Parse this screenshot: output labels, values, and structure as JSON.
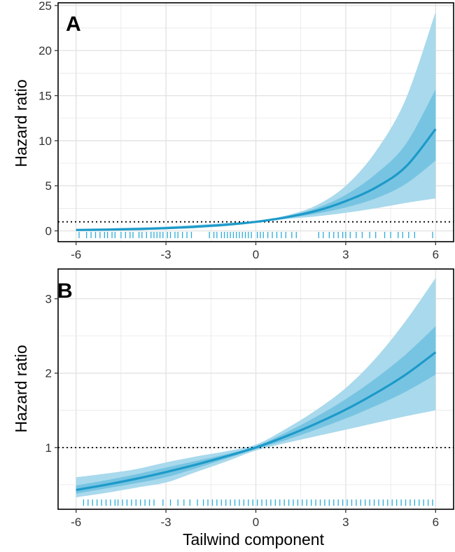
{
  "chart_data": [
    {
      "type": "line",
      "panel_label": "A",
      "xlabel": "",
      "ylabel": "Hazard ratio",
      "xlim": [
        -6.6,
        6.6
      ],
      "ylim": [
        -1.2,
        25.3
      ],
      "xticks": [
        -6,
        -3,
        0,
        3,
        6
      ],
      "xtick_labels": [
        "-6",
        "-3",
        "0",
        "3",
        "6"
      ],
      "yticks": [
        0,
        5,
        10,
        15,
        20,
        25
      ],
      "ytick_labels": [
        "0",
        "5",
        "10",
        "15",
        "20",
        "25"
      ],
      "grid": true,
      "reference_line": 1,
      "colors": {
        "line": "#1d9ac9",
        "band_outer": "#a9d9ec",
        "band_inner": "#6ec0e0",
        "rug": "#2bacd9",
        "grid": "#e3e3e3"
      },
      "x": [
        -6,
        -5,
        -4,
        -3,
        -2,
        -1,
        0,
        1,
        2,
        3,
        4,
        5,
        6
      ],
      "hr": [
        0.1,
        0.14,
        0.2,
        0.3,
        0.46,
        0.68,
        1.0,
        1.5,
        2.2,
        3.3,
        4.8,
        7.1,
        11.3
      ],
      "band_inner": {
        "lower": [
          0.07,
          0.1,
          0.15,
          0.24,
          0.39,
          0.6,
          0.95,
          1.4,
          1.9,
          2.6,
          3.6,
          5.2,
          7.8
        ],
        "upper": [
          0.14,
          0.19,
          0.26,
          0.37,
          0.54,
          0.76,
          1.05,
          1.6,
          2.5,
          4.0,
          6.3,
          9.6,
          15.7
        ]
      },
      "band_outer": {
        "lower": [
          0.04,
          0.07,
          0.11,
          0.18,
          0.31,
          0.52,
          0.9,
          1.3,
          1.6,
          2.0,
          2.5,
          3.1,
          3.6
        ],
        "upper": [
          0.22,
          0.28,
          0.36,
          0.48,
          0.66,
          0.88,
          1.1,
          1.7,
          2.8,
          5.0,
          8.8,
          14.6,
          24.3
        ]
      },
      "rug": [
        -5.9,
        -5.65,
        -5.5,
        -5.35,
        -5.2,
        -5.05,
        -4.95,
        -4.8,
        -4.7,
        -4.5,
        -4.35,
        -4.2,
        -4.1,
        -3.9,
        -3.8,
        -3.65,
        -3.5,
        -3.4,
        -3.3,
        -3.2,
        -3.1,
        -2.95,
        -2.85,
        -2.7,
        -2.6,
        -2.45,
        -2.3,
        -2.15,
        -1.55,
        -1.4,
        -1.3,
        -1.15,
        -1.05,
        -0.95,
        -0.85,
        -0.75,
        -0.65,
        -0.55,
        -0.45,
        -0.35,
        -0.25,
        -0.15,
        0.05,
        0.15,
        0.25,
        0.4,
        0.55,
        0.7,
        0.85,
        1.0,
        1.2,
        1.35,
        2.1,
        2.25,
        2.45,
        2.6,
        2.75,
        2.9,
        3.0,
        3.15,
        3.35,
        3.55,
        3.8,
        4.0,
        4.3,
        4.5,
        4.75,
        4.9,
        5.1,
        5.3,
        5.9
      ]
    },
    {
      "type": "line",
      "panel_label": "B",
      "xlabel": "Tailwind component",
      "ylabel": "Hazard ratio",
      "xlim": [
        -6.6,
        6.6
      ],
      "ylim": [
        0.17,
        3.4
      ],
      "xticks": [
        -6,
        -3,
        0,
        3,
        6
      ],
      "xtick_labels": [
        "-6",
        "-3",
        "0",
        "3",
        "6"
      ],
      "yticks": [
        1,
        2,
        3
      ],
      "ytick_labels": [
        "1",
        "2",
        "3"
      ],
      "grid": true,
      "reference_line": 1,
      "colors": {
        "line": "#1d9ac9",
        "band_outer": "#a9d9ec",
        "band_inner": "#6ec0e0",
        "rug": "#2bacd9",
        "grid": "#e3e3e3"
      },
      "x": [
        -6,
        -5,
        -4,
        -3,
        -2,
        -1,
        0,
        1,
        2,
        3,
        4,
        5,
        6
      ],
      "hr": [
        0.43,
        0.5,
        0.58,
        0.67,
        0.77,
        0.88,
        1.0,
        1.15,
        1.32,
        1.51,
        1.73,
        1.98,
        2.28
      ],
      "band_inner": {
        "lower": [
          0.38,
          0.45,
          0.52,
          0.6,
          0.72,
          0.85,
          0.98,
          1.1,
          1.24,
          1.39,
          1.56,
          1.75,
          1.98
        ],
        "upper": [
          0.49,
          0.56,
          0.64,
          0.73,
          0.82,
          0.91,
          1.02,
          1.2,
          1.41,
          1.65,
          1.93,
          2.25,
          2.63
        ]
      },
      "band_outer": {
        "lower": [
          0.33,
          0.39,
          0.46,
          0.53,
          0.67,
          0.81,
          0.96,
          1.06,
          1.15,
          1.24,
          1.33,
          1.42,
          1.5
        ],
        "upper": [
          0.6,
          0.65,
          0.71,
          0.8,
          0.88,
          0.95,
          1.04,
          1.25,
          1.5,
          1.8,
          2.2,
          2.7,
          3.28
        ]
      },
      "rug": [
        -5.75,
        -5.6,
        -5.45,
        -5.3,
        -5.15,
        -5.0,
        -4.85,
        -4.7,
        -4.6,
        -4.45,
        -4.3,
        -4.15,
        -4.0,
        -3.85,
        -3.7,
        -3.55,
        -3.4,
        -3.1,
        -2.85,
        -2.6,
        -2.4,
        -2.2,
        -1.95,
        -1.75,
        -1.6,
        -1.45,
        -1.3,
        -1.15,
        -1.0,
        -0.85,
        -0.7,
        -0.55,
        -0.4,
        -0.25,
        -0.1,
        0.05,
        0.2,
        0.35,
        0.5,
        0.65,
        0.8,
        0.95,
        1.1,
        1.25,
        1.4,
        1.55,
        1.7,
        1.85,
        2.0,
        2.15,
        2.3,
        2.45,
        2.6,
        2.75,
        2.9,
        3.05,
        3.2,
        3.35,
        3.5,
        3.65,
        3.8,
        3.95,
        4.1,
        4.25,
        4.4,
        4.55,
        4.7,
        4.85,
        5.0,
        5.15,
        5.3,
        5.45,
        5.6,
        5.75,
        5.9
      ]
    }
  ]
}
